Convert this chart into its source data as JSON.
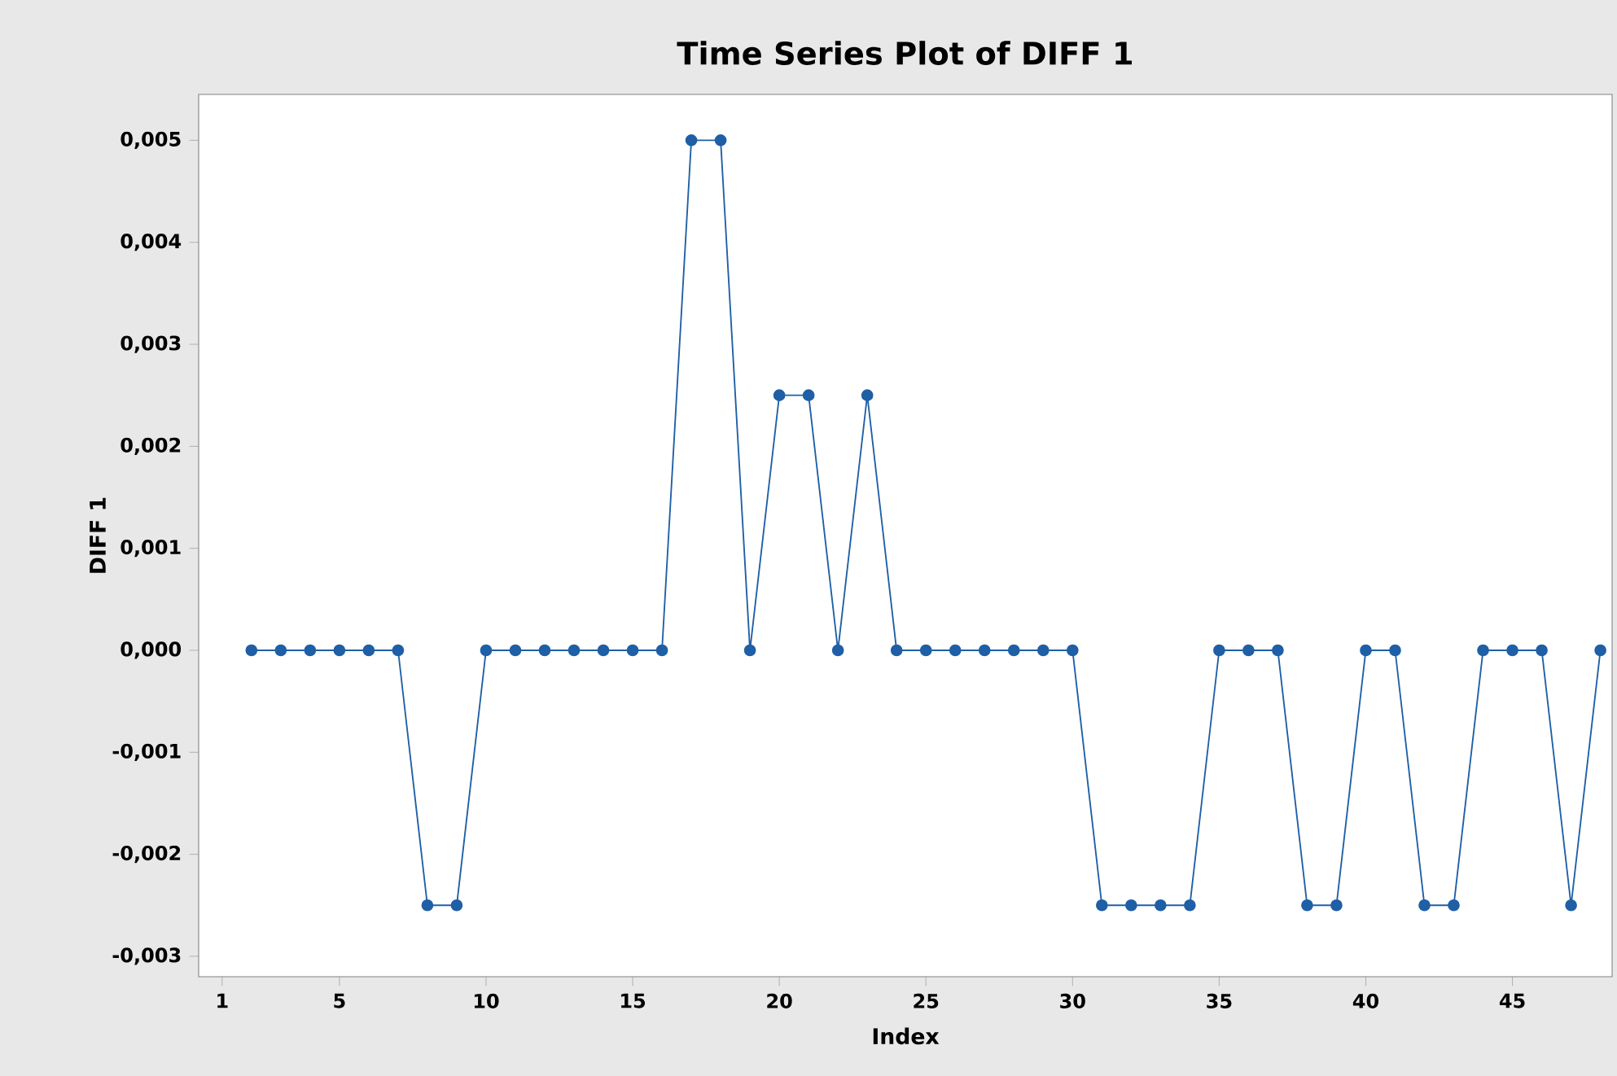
{
  "chart_data": {
    "type": "line",
    "title": "Time Series Plot of DIFF 1",
    "xlabel": "Index",
    "ylabel": "DIFF 1",
    "x": [
      2,
      3,
      4,
      5,
      6,
      7,
      8,
      9,
      10,
      11,
      12,
      13,
      14,
      15,
      16,
      17,
      18,
      19,
      20,
      21,
      22,
      23,
      24,
      25,
      26,
      27,
      28,
      29,
      30,
      31,
      32,
      33,
      34,
      35,
      36,
      37,
      38,
      39,
      40,
      41,
      42,
      43,
      44,
      45,
      46,
      47,
      48
    ],
    "series": [
      {
        "color": "#1f5fa6",
        "values": [
          0,
          0,
          0,
          0,
          0,
          0,
          -0.0025,
          -0.0025,
          0,
          0,
          0,
          0,
          0,
          0,
          0,
          0.005,
          0.005,
          0,
          0.0025,
          0.0025,
          0,
          0.0025,
          0,
          0,
          0,
          0,
          0,
          0,
          0,
          -0.0025,
          -0.0025,
          -0.0025,
          -0.0025,
          0,
          0,
          0,
          -0.0025,
          -0.0025,
          0,
          0,
          -0.0025,
          -0.0025,
          0,
          0,
          0,
          -0.0025,
          0
        ]
      }
    ],
    "xlim": [
      0.2,
      48.4
    ],
    "ylim": [
      -0.0032,
      0.00545
    ],
    "xticks": [
      1,
      5,
      10,
      15,
      20,
      25,
      30,
      35,
      40,
      45
    ],
    "yticks": [
      {
        "value": -0.003,
        "label": "-0,003"
      },
      {
        "value": -0.002,
        "label": "-0,002"
      },
      {
        "value": -0.001,
        "label": "-0,001"
      },
      {
        "value": 0,
        "label": "0,000"
      },
      {
        "value": 0.001,
        "label": "0,001"
      },
      {
        "value": 0.002,
        "label": "0,002"
      },
      {
        "value": 0.003,
        "label": "0,003"
      },
      {
        "value": 0.004,
        "label": "0,004"
      },
      {
        "value": 0.005,
        "label": "0,005"
      }
    ],
    "marker": "circle",
    "line_style": "solid",
    "grid": false
  }
}
